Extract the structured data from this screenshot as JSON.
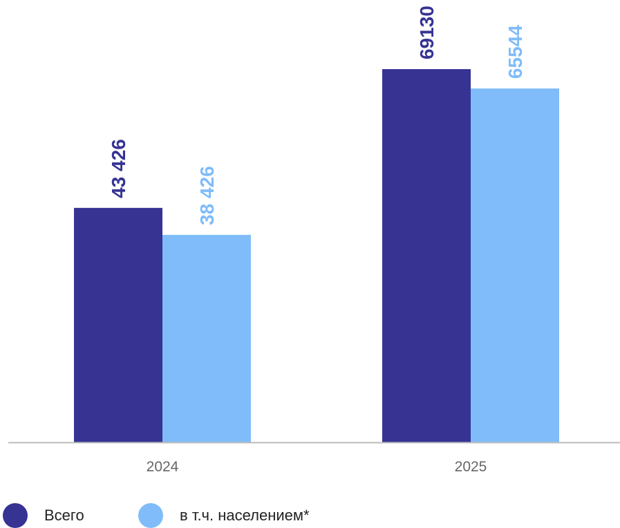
{
  "chart_data": {
    "type": "bar",
    "categories": [
      "2024",
      "2025"
    ],
    "series": [
      {
        "name": "Всего",
        "values": [
          43426,
          69130
        ],
        "labels": [
          "43 426",
          "69130"
        ],
        "color": "#363393"
      },
      {
        "name": "в т.ч. населением*",
        "values": [
          38426,
          65544
        ],
        "labels": [
          "38 426",
          "65544"
        ],
        "color": "#7fbcf9"
      }
    ],
    "ylim": [
      0,
      74000
    ],
    "grid": false,
    "legend_position": "bottom-left",
    "axis_color": "#bbbbbb",
    "tick_label_color": "#666666"
  }
}
